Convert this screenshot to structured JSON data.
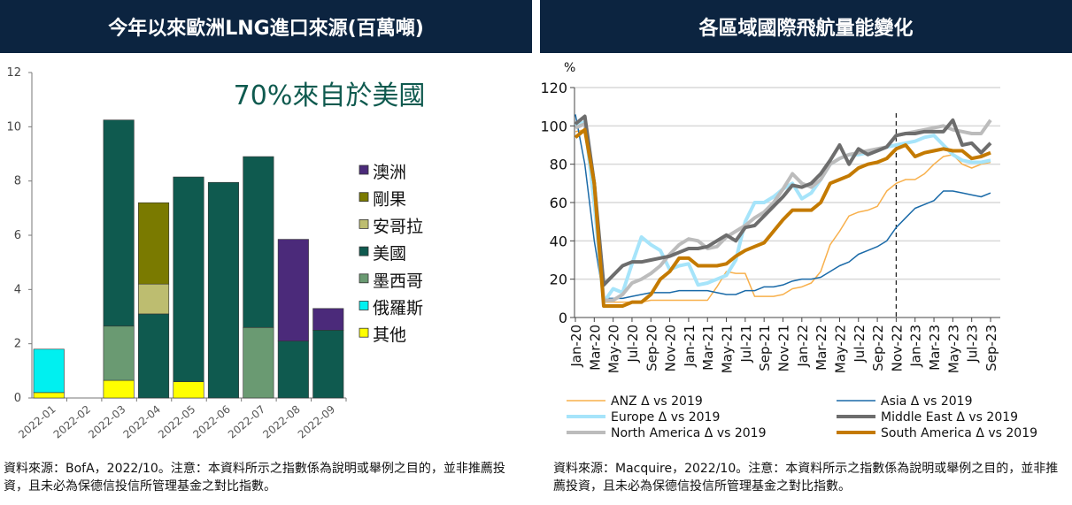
{
  "left_panel": {
    "title": "今年以來歐洲LNG進口來源(百萬噸)",
    "footnote": "資料來源：BofA，2022/10。注意：本資料所示之指數係為說明或舉例之目的，並非推薦投資，且未必為保德信投信所管理基金之對比指數。"
  },
  "right_panel": {
    "title": "各區域國際飛航量能變化",
    "footnote": "資料來源：Macquire，2022/10。注意：本資料所示之指數係為說明或舉例之目的，並非推薦投資，且未必為保德信投信所管理基金之對比指數。"
  },
  "chart_data": [
    {
      "type": "bar",
      "stacked": true,
      "annotation": "70%來自於美國",
      "annotation_color": "#0f5a4f",
      "categories": [
        "2022-01",
        "2022-02",
        "2022-03",
        "2022-04",
        "2022-05",
        "2022-06",
        "2022-07",
        "2022-08",
        "2022-09"
      ],
      "ylim": [
        0,
        12
      ],
      "yticks": [
        0,
        2,
        4,
        6,
        8,
        10,
        12
      ],
      "legend_position": "right",
      "series": [
        {
          "name": "其他",
          "color": "#ffff00",
          "values": [
            0.2,
            0,
            0.65,
            0,
            0.6,
            0,
            0,
            0,
            0
          ]
        },
        {
          "name": "俄羅斯",
          "color": "#00f0f0",
          "values": [
            1.6,
            0,
            0,
            0,
            0,
            0,
            0,
            0,
            0
          ]
        },
        {
          "name": "墨西哥",
          "color": "#6a9a72",
          "values": [
            0,
            0,
            2.0,
            0,
            0,
            0,
            2.6,
            0,
            0
          ]
        },
        {
          "name": "美國",
          "color": "#0f5a4f",
          "values": [
            0,
            0,
            7.6,
            3.1,
            7.55,
            7.95,
            6.3,
            2.1,
            2.5
          ]
        },
        {
          "name": "安哥拉",
          "color": "#bdbd70",
          "values": [
            0,
            0,
            0,
            1.1,
            0,
            0,
            0,
            0,
            0
          ]
        },
        {
          "name": "剛果",
          "color": "#7a7a00",
          "values": [
            0,
            0,
            0,
            3.0,
            0,
            0,
            0,
            0,
            0
          ]
        },
        {
          "name": "澳洲",
          "color": "#4b2a7a",
          "values": [
            0,
            0,
            0,
            0,
            0,
            0,
            0,
            3.75,
            0.8
          ]
        }
      ]
    },
    {
      "type": "line",
      "ylabel": "%",
      "ylim": [
        0,
        120
      ],
      "yticks": [
        0,
        20,
        40,
        60,
        80,
        100,
        120
      ],
      "grid": true,
      "x_start": "Jan-20",
      "xtick_labels": [
        "Jan-20",
        "Mar-20",
        "May-20",
        "Jul-20",
        "Sep-20",
        "Nov-20",
        "Jan-21",
        "Mar-21",
        "May-21",
        "Jul-21",
        "Sep-21",
        "Nov-21",
        "Jan-22",
        "Mar-22",
        "May-22",
        "Jul-22",
        "Sep-22",
        "Nov-22",
        "Jan-23",
        "Mar-23",
        "May-23",
        "Jul-23",
        "Sep-23"
      ],
      "vertical_marker": "Nov-22",
      "legend_position": "bottom",
      "series": [
        {
          "name": "ANZ Δ vs 2019",
          "color": "#f8b04c",
          "width": 1.5,
          "values": [
            97,
            98,
            55,
            8,
            8,
            8,
            8,
            8,
            9,
            9,
            9,
            9,
            9,
            9,
            9,
            16,
            24,
            23,
            23,
            11,
            11,
            11,
            12,
            15,
            16,
            18,
            24,
            38,
            45,
            53,
            55,
            56,
            58,
            66,
            70,
            72,
            72,
            75,
            80,
            84,
            85,
            80,
            78,
            80,
            81
          ]
        },
        {
          "name": "Asia Δ vs 2019",
          "color": "#1a6aa8",
          "width": 1.5,
          "values": [
            106,
            80,
            40,
            10,
            10,
            10,
            11,
            12,
            13,
            13,
            13,
            14,
            14,
            14,
            14,
            13,
            12,
            12,
            14,
            14,
            16,
            16,
            17,
            19,
            20,
            20,
            21,
            24,
            27,
            29,
            33,
            35,
            37,
            40,
            47,
            52,
            57,
            59,
            61,
            66,
            66,
            65,
            64,
            63,
            65
          ]
        },
        {
          "name": "Europe Δ vs 2019",
          "color": "#a6e4fa",
          "width": 4,
          "values": [
            100,
            102,
            60,
            8,
            15,
            13,
            28,
            42,
            38,
            35,
            25,
            27,
            28,
            17,
            18,
            20,
            22,
            30,
            50,
            60,
            60,
            63,
            67,
            70,
            62,
            65,
            72,
            80,
            83,
            85,
            85,
            86,
            87,
            89,
            90,
            91,
            92,
            94,
            95,
            90,
            85,
            82,
            81,
            81,
            82
          ]
        },
        {
          "name": "Middle East Δ vs 2019",
          "color": "#6d6d6d",
          "width": 4,
          "values": [
            101,
            105,
            70,
            17,
            22,
            27,
            29,
            29,
            30,
            31,
            32,
            34,
            36,
            36,
            37,
            40,
            43,
            40,
            47,
            48,
            53,
            58,
            63,
            69,
            68,
            70,
            75,
            82,
            90,
            80,
            88,
            85,
            87,
            89,
            95,
            96,
            96,
            97,
            97,
            97,
            103,
            90,
            91,
            86,
            91
          ]
        },
        {
          "name": "North America Δ vs 2019",
          "color": "#bcbcbc",
          "width": 4,
          "values": [
            99,
            101,
            70,
            9,
            9,
            12,
            18,
            20,
            23,
            27,
            33,
            38,
            41,
            40,
            36,
            37,
            42,
            45,
            48,
            52,
            55,
            60,
            67,
            75,
            70,
            68,
            72,
            80,
            83,
            85,
            86,
            87,
            88,
            89,
            95,
            96,
            97,
            98,
            99,
            100,
            98,
            97,
            96,
            96,
            103
          ]
        },
        {
          "name": "South America Δ vs 2019",
          "color": "#c47a00",
          "width": 4,
          "values": [
            94,
            98,
            70,
            6,
            6,
            6,
            8,
            8,
            12,
            20,
            24,
            31,
            31,
            27,
            27,
            27,
            28,
            32,
            35,
            37,
            39,
            45,
            51,
            56,
            56,
            56,
            60,
            70,
            72,
            74,
            78,
            80,
            81,
            83,
            88,
            90,
            84,
            86,
            87,
            88,
            87,
            87,
            83,
            84,
            86
          ]
        }
      ]
    }
  ]
}
